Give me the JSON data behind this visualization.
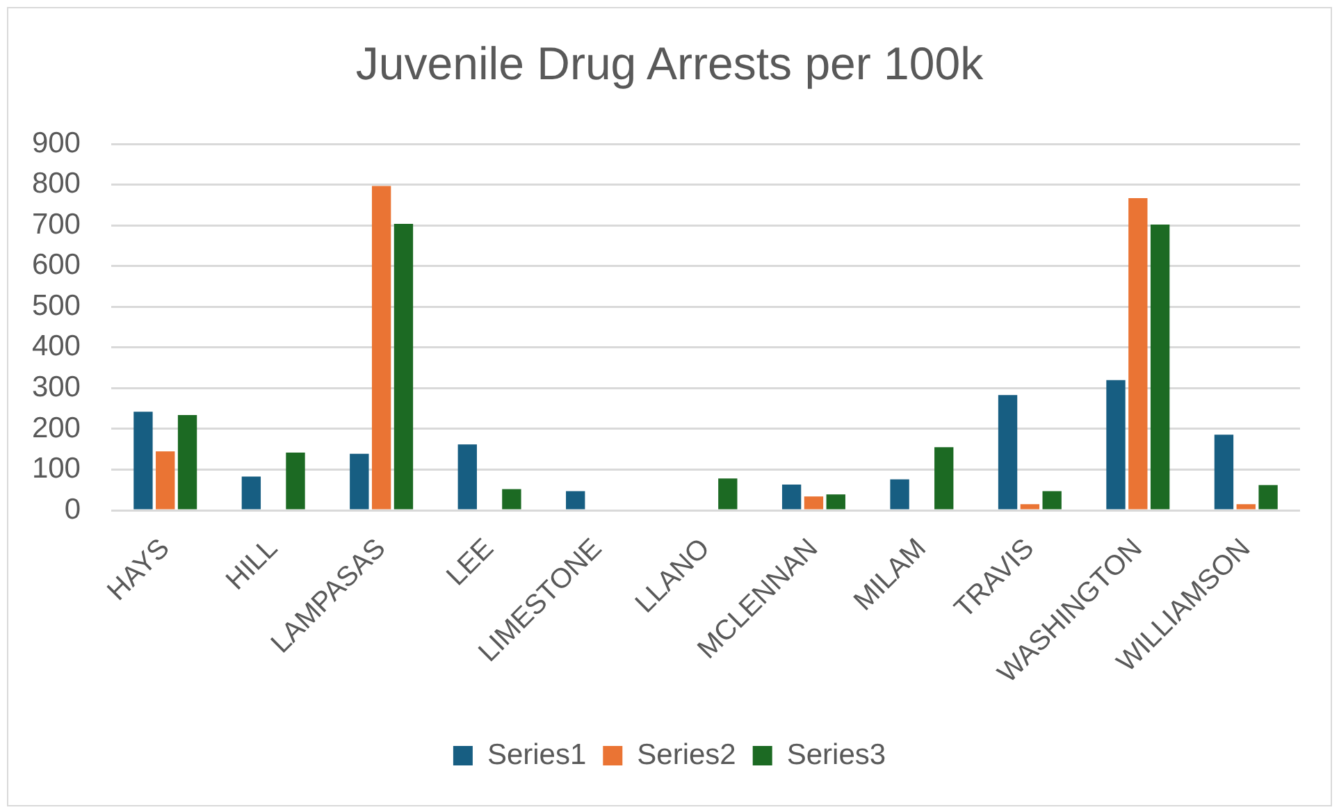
{
  "chart_data": {
    "type": "bar",
    "title": "Juvenile Drug Arrests per 100k",
    "categories": [
      "HAYS",
      "HILL",
      "LAMPASAS",
      "LEE",
      "LIMESTONE",
      "LLANO",
      "MCLENNAN",
      "MILAM",
      "TRAVIS",
      "WASHINGTON",
      "WILLIAMSON"
    ],
    "series": [
      {
        "name": "Series1",
        "color": "#175e82",
        "values": [
          242,
          83,
          139,
          162,
          47,
          null,
          63,
          76,
          283,
          320,
          186
        ]
      },
      {
        "name": "Series2",
        "color": "#ea7434",
        "values": [
          145,
          null,
          797,
          null,
          null,
          null,
          34,
          null,
          15,
          767,
          15
        ]
      },
      {
        "name": "Series3",
        "color": "#1c6a23",
        "values": [
          234,
          142,
          704,
          52,
          null,
          78,
          39,
          155,
          47,
          702,
          62
        ]
      }
    ],
    "ylim": [
      0,
      900
    ],
    "yticks": [
      0,
      100,
      200,
      300,
      400,
      500,
      600,
      700,
      800,
      900
    ],
    "grid": "y",
    "legend": "bottom"
  }
}
